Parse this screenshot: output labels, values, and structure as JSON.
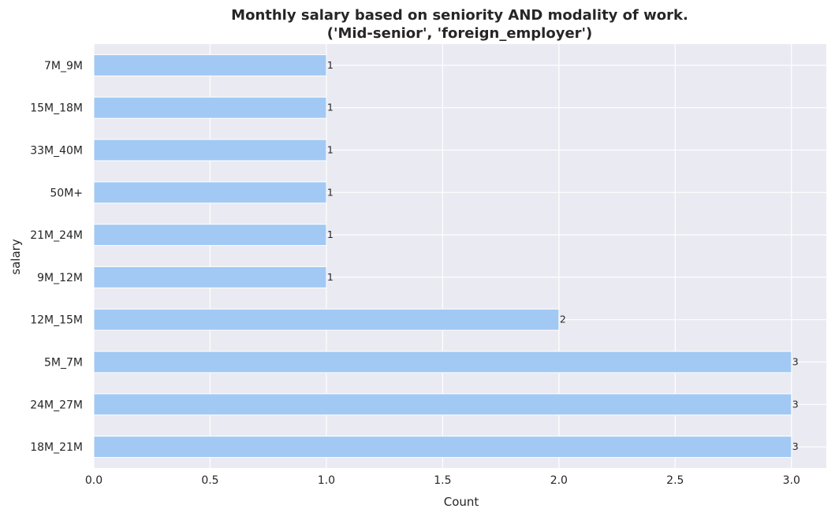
{
  "chart_data": {
    "type": "bar",
    "orientation": "horizontal",
    "title_lines": [
      "Monthly salary based on seniority AND modality of work.",
      "('Mid-senior', 'foreign_employer')"
    ],
    "xlabel": "Count",
    "ylabel": "salary",
    "categories": [
      "7M_9M",
      "15M_18M",
      "33M_40M",
      "50M+",
      "21M_24M",
      "9M_12M",
      "12M_15M",
      "5M_7M",
      "24M_27M",
      "18M_21M"
    ],
    "values": [
      1,
      1,
      1,
      1,
      1,
      1,
      2,
      3,
      3,
      3
    ],
    "data_labels": [
      "1",
      "1",
      "1",
      "1",
      "1",
      "1",
      "2",
      "3",
      "3",
      "3"
    ],
    "xlim": [
      0,
      3.15
    ],
    "xticks": [
      0,
      0.5,
      1,
      1.5,
      2,
      2.5,
      3
    ],
    "xtick_labels": [
      "0.0",
      "0.5",
      "1.0",
      "1.5",
      "2.0",
      "2.5",
      "3.0"
    ],
    "grid": true,
    "bar_color": "#a1c9f4",
    "plot_background": "#eaeaf2",
    "grid_color": "#ffffff"
  }
}
